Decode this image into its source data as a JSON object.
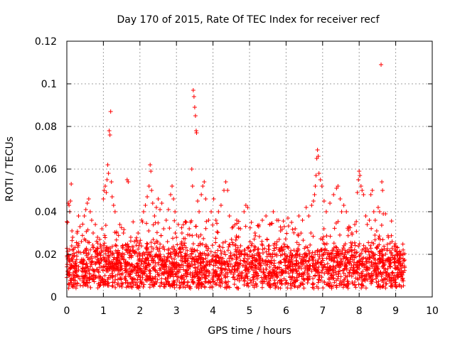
{
  "chart_data": {
    "type": "scatter",
    "title": "Day 170 of 2015, Rate Of TEC Index for receiver recf",
    "xlabel": "GPS time / hours",
    "ylabel": "ROTI / TECUs",
    "xlim": [
      0,
      10
    ],
    "ylim": [
      0,
      0.12
    ],
    "x_ticks": [
      "0",
      "1",
      "2",
      "3",
      "4",
      "5",
      "6",
      "7",
      "8",
      "9",
      "10"
    ],
    "y_ticks": [
      "0",
      "0.02",
      "0.04",
      "0.06",
      "0.08",
      "0.1",
      "0.12"
    ],
    "grid": true,
    "marker": "+",
    "color": "#ff0000",
    "series": [
      {
        "name": "ROTI",
        "points": [
          [
            0.02,
            0.035
          ],
          [
            0.04,
            0.044
          ],
          [
            0.06,
            0.043
          ],
          [
            0.08,
            0.04
          ],
          [
            0.1,
            0.045
          ],
          [
            0.12,
            0.053
          ],
          [
            0.14,
            0.031
          ],
          [
            0.16,
            0.028
          ],
          [
            0.28,
            0.03
          ],
          [
            0.32,
            0.038
          ],
          [
            0.36,
            0.033
          ],
          [
            0.4,
            0.026
          ],
          [
            0.48,
            0.038
          ],
          [
            0.52,
            0.041
          ],
          [
            0.56,
            0.044
          ],
          [
            0.6,
            0.046
          ],
          [
            0.64,
            0.04
          ],
          [
            0.68,
            0.036
          ],
          [
            0.72,
            0.03
          ],
          [
            0.78,
            0.034
          ],
          [
            0.84,
            0.028
          ],
          [
            0.9,
            0.027
          ],
          [
            0.96,
            0.032
          ],
          [
            1.0,
            0.046
          ],
          [
            1.02,
            0.05
          ],
          [
            1.05,
            0.052
          ],
          [
            1.08,
            0.049
          ],
          [
            1.1,
            0.055
          ],
          [
            1.12,
            0.062
          ],
          [
            1.14,
            0.058
          ],
          [
            1.16,
            0.078
          ],
          [
            1.18,
            0.076
          ],
          [
            1.2,
            0.087
          ],
          [
            1.22,
            0.054
          ],
          [
            1.24,
            0.047
          ],
          [
            1.28,
            0.043
          ],
          [
            1.32,
            0.04
          ],
          [
            1.36,
            0.03
          ],
          [
            1.45,
            0.034
          ],
          [
            1.55,
            0.03
          ],
          [
            1.65,
            0.055
          ],
          [
            1.68,
            0.054
          ],
          [
            1.75,
            0.028
          ],
          [
            1.85,
            0.026
          ],
          [
            1.95,
            0.03
          ],
          [
            2.05,
            0.036
          ],
          [
            2.1,
            0.04
          ],
          [
            2.15,
            0.043
          ],
          [
            2.2,
            0.047
          ],
          [
            2.25,
            0.052
          ],
          [
            2.28,
            0.062
          ],
          [
            2.3,
            0.059
          ],
          [
            2.32,
            0.05
          ],
          [
            2.35,
            0.044
          ],
          [
            2.4,
            0.038
          ],
          [
            2.45,
            0.042
          ],
          [
            2.5,
            0.046
          ],
          [
            2.55,
            0.041
          ],
          [
            2.6,
            0.044
          ],
          [
            2.65,
            0.032
          ],
          [
            2.72,
            0.036
          ],
          [
            2.78,
            0.041
          ],
          [
            2.84,
            0.048
          ],
          [
            2.88,
            0.052
          ],
          [
            2.92,
            0.046
          ],
          [
            2.96,
            0.04
          ],
          [
            3.05,
            0.034
          ],
          [
            3.15,
            0.03
          ],
          [
            3.25,
            0.035
          ],
          [
            3.35,
            0.032
          ],
          [
            3.42,
            0.06
          ],
          [
            3.44,
            0.052
          ],
          [
            3.46,
            0.097
          ],
          [
            3.48,
            0.094
          ],
          [
            3.5,
            0.089
          ],
          [
            3.52,
            0.085
          ],
          [
            3.54,
            0.078
          ],
          [
            3.55,
            0.077
          ],
          [
            3.58,
            0.045
          ],
          [
            3.62,
            0.04
          ],
          [
            3.68,
            0.048
          ],
          [
            3.72,
            0.052
          ],
          [
            3.76,
            0.054
          ],
          [
            3.8,
            0.046
          ],
          [
            3.88,
            0.036
          ],
          [
            3.95,
            0.04
          ],
          [
            4.02,
            0.046
          ],
          [
            4.08,
            0.036
          ],
          [
            4.15,
            0.04
          ],
          [
            4.22,
            0.043
          ],
          [
            4.3,
            0.05
          ],
          [
            4.35,
            0.054
          ],
          [
            4.4,
            0.05
          ],
          [
            4.45,
            0.038
          ],
          [
            4.55,
            0.033
          ],
          [
            4.65,
            0.036
          ],
          [
            4.75,
            0.032
          ],
          [
            4.85,
            0.04
          ],
          [
            4.9,
            0.043
          ],
          [
            4.95,
            0.042
          ],
          [
            5.05,
            0.035
          ],
          [
            5.15,
            0.03
          ],
          [
            5.25,
            0.033
          ],
          [
            5.35,
            0.036
          ],
          [
            5.45,
            0.038
          ],
          [
            5.55,
            0.034
          ],
          [
            5.65,
            0.04
          ],
          [
            5.75,
            0.036
          ],
          [
            5.85,
            0.031
          ],
          [
            5.95,
            0.033
          ],
          [
            6.05,
            0.037
          ],
          [
            6.15,
            0.035
          ],
          [
            6.25,
            0.032
          ],
          [
            6.35,
            0.038
          ],
          [
            6.45,
            0.036
          ],
          [
            6.55,
            0.042
          ],
          [
            6.62,
            0.038
          ],
          [
            6.7,
            0.043
          ],
          [
            6.75,
            0.045
          ],
          [
            6.78,
            0.048
          ],
          [
            6.8,
            0.052
          ],
          [
            6.82,
            0.057
          ],
          [
            6.84,
            0.065
          ],
          [
            6.86,
            0.069
          ],
          [
            6.88,
            0.066
          ],
          [
            6.9,
            0.058
          ],
          [
            6.94,
            0.055
          ],
          [
            6.98,
            0.052
          ],
          [
            7.04,
            0.045
          ],
          [
            7.1,
            0.04
          ],
          [
            7.2,
            0.044
          ],
          [
            7.3,
            0.048
          ],
          [
            7.38,
            0.051
          ],
          [
            7.42,
            0.052
          ],
          [
            7.48,
            0.046
          ],
          [
            7.52,
            0.04
          ],
          [
            7.58,
            0.043
          ],
          [
            7.65,
            0.04
          ],
          [
            7.72,
            0.033
          ],
          [
            7.8,
            0.03
          ],
          [
            7.88,
            0.034
          ],
          [
            7.95,
            0.049
          ],
          [
            7.98,
            0.055
          ],
          [
            8.0,
            0.059
          ],
          [
            8.02,
            0.057
          ],
          [
            8.05,
            0.052
          ],
          [
            8.08,
            0.05
          ],
          [
            8.12,
            0.048
          ],
          [
            8.18,
            0.038
          ],
          [
            8.22,
            0.034
          ],
          [
            8.28,
            0.036
          ],
          [
            8.32,
            0.048
          ],
          [
            8.36,
            0.05
          ],
          [
            8.4,
            0.04
          ],
          [
            8.44,
            0.036
          ],
          [
            8.48,
            0.031
          ],
          [
            8.52,
            0.042
          ],
          [
            8.56,
            0.04
          ],
          [
            8.6,
            0.109
          ],
          [
            8.62,
            0.054
          ],
          [
            8.64,
            0.05
          ],
          [
            8.66,
            0.039
          ],
          [
            8.72,
            0.039
          ],
          [
            8.8,
            0.028
          ],
          [
            8.9,
            0.026
          ],
          [
            9.0,
            0.022
          ],
          [
            9.1,
            0.02
          ],
          [
            9.2,
            0.018
          ]
        ]
      }
    ],
    "dense_band": {
      "x_start": 0.0,
      "x_end": 9.25,
      "y_floor": 0.004,
      "y_ceiling_typical": 0.03,
      "y_center": 0.014,
      "seed": 170
    }
  }
}
